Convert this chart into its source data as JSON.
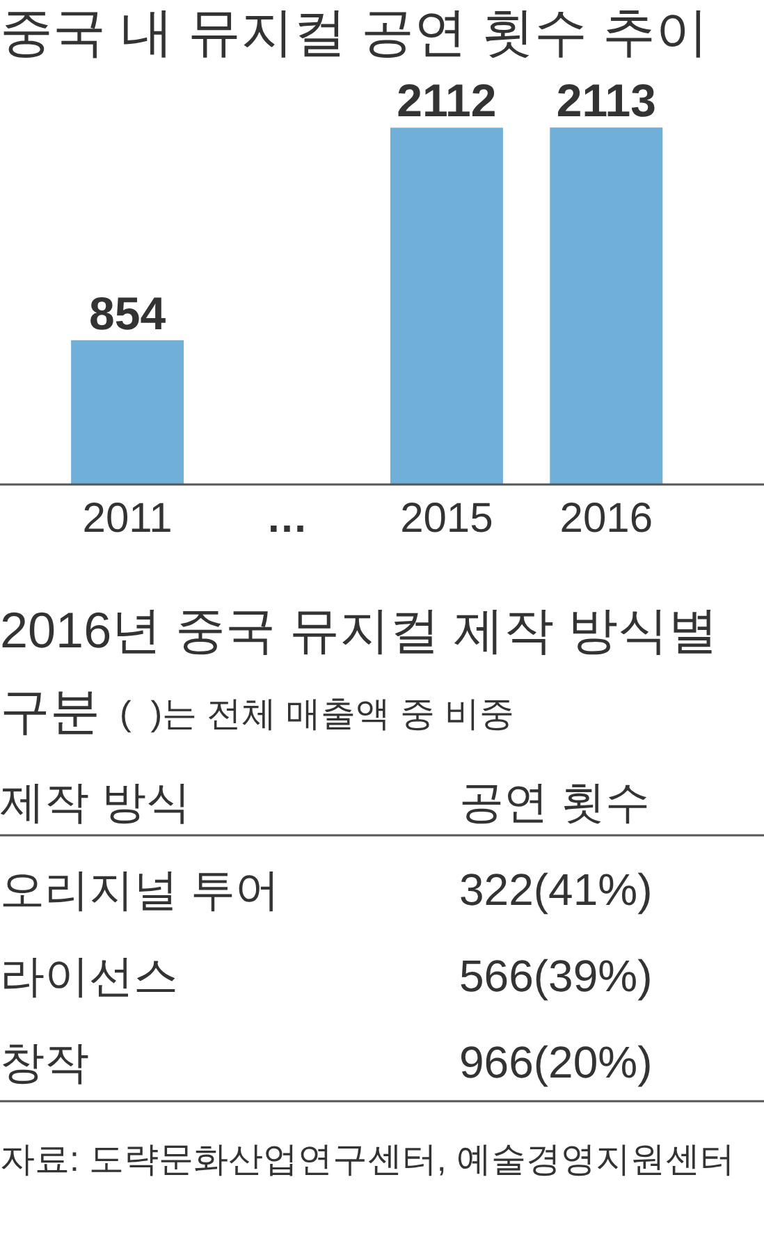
{
  "chart_data": [
    {
      "type": "bar",
      "title": "중국 내 뮤지컬 공연 횟수 추이",
      "categories": [
        "2011",
        "…",
        "2015",
        "2016"
      ],
      "values": [
        854,
        null,
        2112,
        2113
      ],
      "color": "#70afd7",
      "data_labels": true
    },
    {
      "type": "other",
      "title": "2016년 중국 뮤지컬 제작 방식별 구분",
      "subtitle": "(  )는 전체 매출액 중 비중",
      "xlabel": "제작 방식",
      "ylabel": "공연 횟수",
      "categories": [
        "오리지널 투어",
        "라이선스",
        "창작"
      ],
      "values": [
        322,
        566,
        966
      ],
      "value_labels": [
        "322(41%)",
        "566(39%)",
        "966(20%)"
      ],
      "annotations": [
        "자료: 도략문화산업연구센터, 예술경영지원센터"
      ]
    }
  ]
}
